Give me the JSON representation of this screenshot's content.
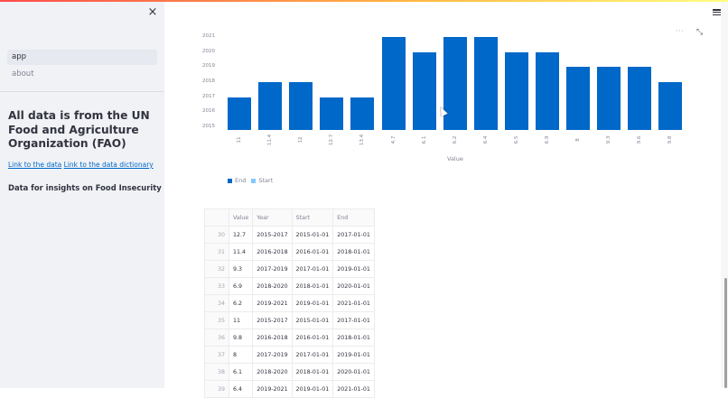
{
  "sidebar": {
    "close_icon": "×",
    "nav": [
      {
        "label": "app",
        "active": true
      },
      {
        "label": "about",
        "active": false
      }
    ],
    "heading": "All data is from the UN Food and Agriculture Organization (FAO)",
    "links": [
      {
        "label": "Link to the data"
      },
      {
        "label": "Link to the data dictionary"
      }
    ],
    "subheading": "Data for insights on Food Insecurity"
  },
  "header": {
    "menu_icon": "hamburger-icon"
  },
  "chart_toolbar": {
    "more_label": "···",
    "expand_icon": "⤡"
  },
  "chart_data": {
    "type": "bar",
    "title": "",
    "xlabel": "Value",
    "ylabel": "",
    "categories": [
      "11",
      "11.4",
      "12",
      "12.7",
      "13.4",
      "4.7",
      "6.1",
      "6.2",
      "6.4",
      "6.5",
      "6.9",
      "8",
      "9.3",
      "9.6",
      "9.8"
    ],
    "series": [
      {
        "name": "End",
        "color": "#0068c9",
        "values": [
          2017,
          2018,
          2018,
          2017,
          2017,
          2021,
          2020,
          2021,
          2021,
          2020,
          2020,
          2019,
          2019,
          2019,
          2018
        ]
      },
      {
        "name": "Start",
        "color": "#83c9ff",
        "values": [
          2015,
          2016,
          2016,
          2015,
          2015,
          2019,
          2018,
          2019,
          2019,
          2018,
          2018,
          2017,
          2017,
          2017,
          2016
        ]
      }
    ],
    "yticks": [
      "2021",
      "2020",
      "2019",
      "2018",
      "2017",
      "2016",
      "2015"
    ],
    "ylim": [
      2015,
      2021
    ],
    "legend_position": "bottom-left",
    "grid": false
  },
  "legend": {
    "items": [
      {
        "label": "End",
        "color": "#0068c9"
      },
      {
        "label": "Start",
        "color": "#83c9ff"
      }
    ]
  },
  "table": {
    "columns": [
      "",
      "Value",
      "Year",
      "Start",
      "End"
    ],
    "rows": [
      {
        "idx": "30",
        "value": "12.7",
        "year": "2015-2017",
        "start": "2015-01-01",
        "end": "2017-01-01"
      },
      {
        "idx": "31",
        "value": "11.4",
        "year": "2016-2018",
        "start": "2016-01-01",
        "end": "2018-01-01"
      },
      {
        "idx": "32",
        "value": "9.3",
        "year": "2017-2019",
        "start": "2017-01-01",
        "end": "2019-01-01"
      },
      {
        "idx": "33",
        "value": "6.9",
        "year": "2018-2020",
        "start": "2018-01-01",
        "end": "2020-01-01"
      },
      {
        "idx": "34",
        "value": "6.2",
        "year": "2019-2021",
        "start": "2019-01-01",
        "end": "2021-01-01"
      },
      {
        "idx": "35",
        "value": "11",
        "year": "2015-2017",
        "start": "2015-01-01",
        "end": "2017-01-01"
      },
      {
        "idx": "36",
        "value": "9.8",
        "year": "2016-2018",
        "start": "2016-01-01",
        "end": "2018-01-01"
      },
      {
        "idx": "37",
        "value": "8",
        "year": "2017-2019",
        "start": "2017-01-01",
        "end": "2019-01-01"
      },
      {
        "idx": "38",
        "value": "6.1",
        "year": "2018-2020",
        "start": "2018-01-01",
        "end": "2020-01-01"
      },
      {
        "idx": "39",
        "value": "6.4",
        "year": "2019-2021",
        "start": "2019-01-01",
        "end": "2021-01-01"
      }
    ]
  }
}
